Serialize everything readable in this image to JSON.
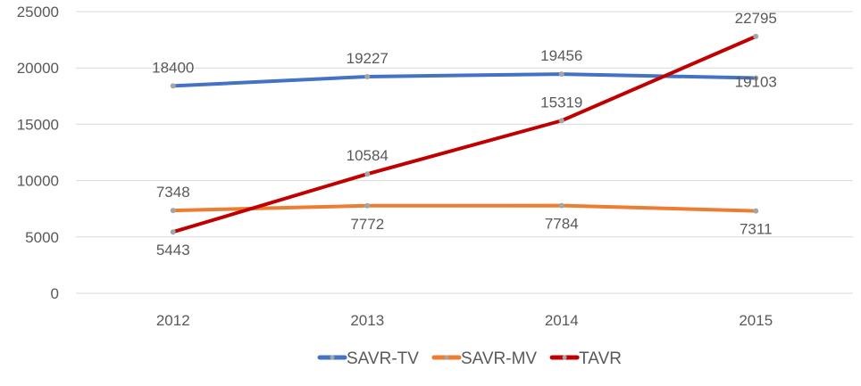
{
  "chart_data": {
    "type": "line",
    "title": "",
    "xlabel": "",
    "ylabel": "",
    "categories": [
      "2012",
      "2013",
      "2014",
      "2015"
    ],
    "ylim": [
      0,
      25000
    ],
    "yticks": [
      "0",
      "5000",
      "10000",
      "15000",
      "20000",
      "25000"
    ],
    "grid": true,
    "legend_position": "bottom",
    "series": [
      {
        "name": "SAVR-TV",
        "color": "#4472C4",
        "values": [
          18400,
          19227,
          19456,
          19103
        ]
      },
      {
        "name": "SAVR-MV",
        "color": "#ED7D31",
        "values": [
          7348,
          7772,
          7784,
          7311
        ]
      },
      {
        "name": "TAVR",
        "color": "#C00000",
        "values": [
          5443,
          10584,
          15319,
          22795
        ]
      }
    ]
  }
}
